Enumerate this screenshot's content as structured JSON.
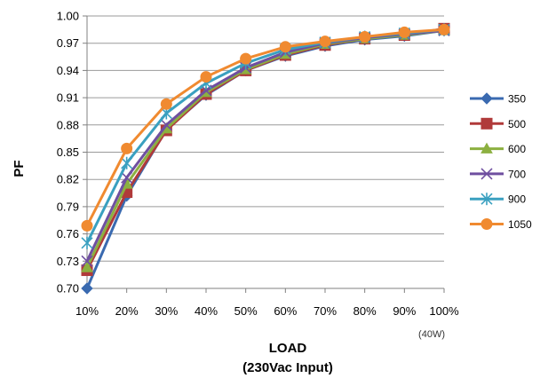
{
  "chart_data": {
    "type": "line",
    "title": "",
    "xlabel_line1": "LOAD",
    "xlabel_line2": "(230Vac Input)",
    "ylabel": "PF",
    "x_note": "(40W)",
    "categories": [
      "10%",
      "20%",
      "30%",
      "40%",
      "50%",
      "60%",
      "70%",
      "80%",
      "90%",
      "100%"
    ],
    "ylim": [
      0.7,
      1.0
    ],
    "yticks": [
      "0.70",
      "0.73",
      "0.76",
      "0.79",
      "0.82",
      "0.85",
      "0.88",
      "0.91",
      "0.94",
      "0.97",
      "1.00"
    ],
    "grid": "horizontal",
    "legend_position": "right",
    "series": [
      {
        "name": "350",
        "color": "#3a6ab0",
        "marker": "diamond",
        "values": [
          0.7,
          0.802,
          0.875,
          0.913,
          0.94,
          0.956,
          0.967,
          0.974,
          0.978,
          0.984
        ]
      },
      {
        "name": "500",
        "color": "#b03a3a",
        "marker": "square",
        "values": [
          0.72,
          0.806,
          0.874,
          0.914,
          0.94,
          0.957,
          0.968,
          0.975,
          0.979,
          0.986
        ]
      },
      {
        "name": "600",
        "color": "#8cb040",
        "marker": "triangle",
        "values": [
          0.723,
          0.815,
          0.876,
          0.916,
          0.941,
          0.958,
          0.969,
          0.975,
          0.979,
          0.984
        ]
      },
      {
        "name": "700",
        "color": "#6f4fa0",
        "marker": "x",
        "values": [
          0.73,
          0.822,
          0.88,
          0.918,
          0.943,
          0.96,
          0.97,
          0.976,
          0.98,
          0.984
        ]
      },
      {
        "name": "900",
        "color": "#3aa0c0",
        "marker": "asterisk",
        "values": [
          0.75,
          0.838,
          0.893,
          0.926,
          0.948,
          0.963,
          0.971,
          0.977,
          0.981,
          0.985
        ]
      },
      {
        "name": "1050",
        "color": "#f08a30",
        "marker": "circle",
        "values": [
          0.769,
          0.854,
          0.903,
          0.933,
          0.953,
          0.966,
          0.972,
          0.977,
          0.982,
          0.985
        ]
      }
    ]
  }
}
